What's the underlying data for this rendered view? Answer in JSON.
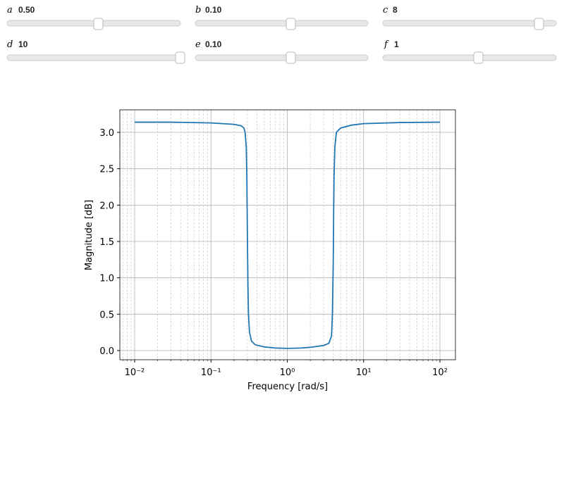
{
  "controls": [
    {
      "label": "a",
      "value": "0.50"
    },
    {
      "label": "b",
      "value": "0.10"
    },
    {
      "label": "c",
      "value": "8"
    },
    {
      "label": "d",
      "value": "10"
    },
    {
      "label": "e",
      "value": "0.10"
    },
    {
      "label": "f",
      "value": "1"
    }
  ],
  "chart_data": {
    "type": "line",
    "xlabel": "Frequency [rad/s]",
    "ylabel": "Magnitude [dB]",
    "xscale": "log",
    "grid": true,
    "x": [
      0.01,
      0.03,
      0.1,
      0.2,
      0.25,
      0.27,
      0.28,
      0.29,
      0.295,
      0.3,
      0.305,
      0.31,
      0.32,
      0.34,
      0.38,
      0.5,
      0.7,
      1,
      1.5,
      2,
      3,
      3.5,
      3.8,
      3.9,
      4.0,
      4.05,
      4.1,
      4.2,
      4.4,
      5,
      7,
      10,
      30,
      100
    ],
    "series": [
      {
        "color": "#1f77b4",
        "values": [
          3.14,
          3.14,
          3.13,
          3.11,
          3.09,
          3.06,
          3.0,
          2.8,
          2.4,
          1.6,
          0.9,
          0.5,
          0.25,
          0.13,
          0.08,
          0.05,
          0.035,
          0.03,
          0.035,
          0.045,
          0.07,
          0.1,
          0.2,
          0.5,
          1.2,
          1.9,
          2.4,
          2.8,
          3.0,
          3.06,
          3.1,
          3.12,
          3.135,
          3.14
        ]
      }
    ],
    "xlim": [
      0.0064,
      159.6
    ],
    "ylim": [
      -0.126,
      3.31
    ],
    "xticks": [
      {
        "value": 0.01,
        "label": "10⁻²"
      },
      {
        "value": 0.1,
        "label": "10⁻¹"
      },
      {
        "value": 1,
        "label": "10⁰"
      },
      {
        "value": 10,
        "label": "10¹"
      },
      {
        "value": 100,
        "label": "10²"
      }
    ],
    "yticks": [
      {
        "value": 0,
        "label": "0.0"
      },
      {
        "value": 0.5,
        "label": "0.5"
      },
      {
        "value": 1,
        "label": "1.0"
      },
      {
        "value": 1.5,
        "label": "1.5"
      },
      {
        "value": 2,
        "label": "2.0"
      },
      {
        "value": 2.5,
        "label": "2.5"
      },
      {
        "value": 3,
        "label": "3.0"
      }
    ]
  }
}
